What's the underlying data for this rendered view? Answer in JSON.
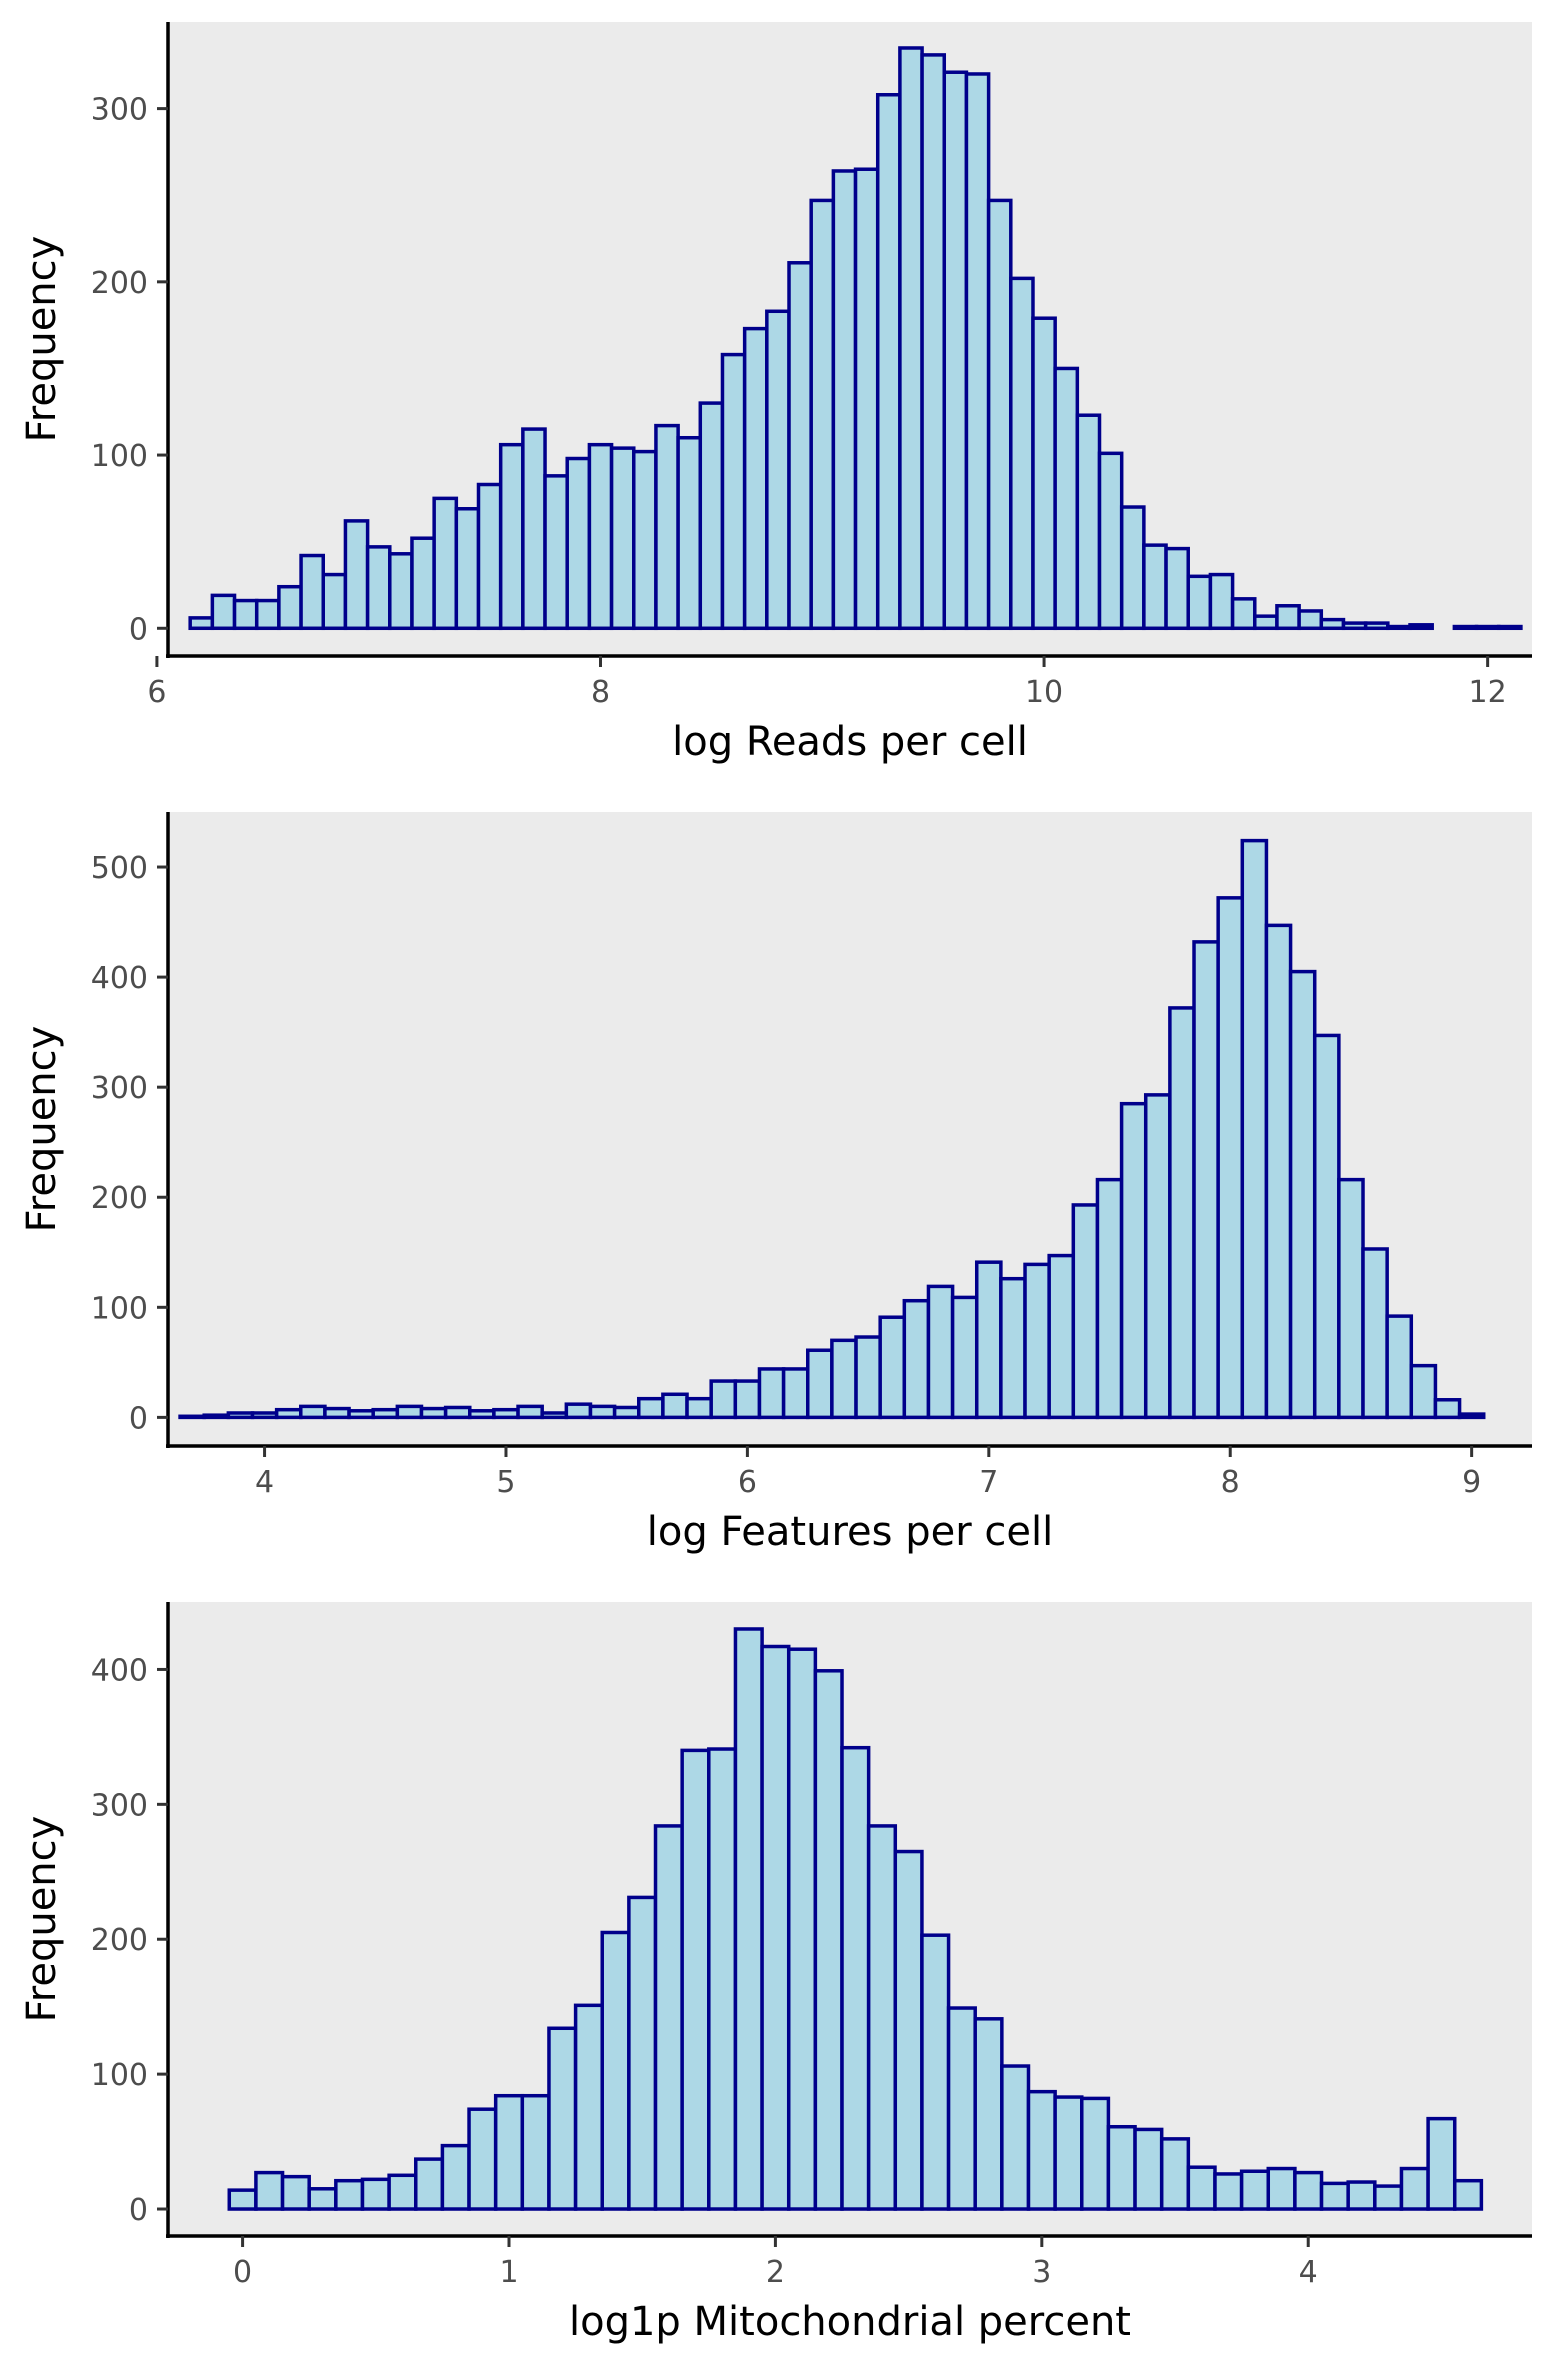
{
  "colors": {
    "bar_fill": "#add8e6",
    "bar_outline": "#00008b",
    "panel_background": "#ebebeb",
    "axis": "#000000",
    "tick_text": "#4d4d4d"
  },
  "chart_data": [
    {
      "type": "bar",
      "subtype": "histogram",
      "xlabel": "log Reads per cell",
      "ylabel": "Frequency",
      "xlim": [
        6.05,
        12.2
      ],
      "ylim": [
        -16,
        350
      ],
      "xticks": [
        6,
        8,
        10,
        12
      ],
      "xtick_labels": [
        "6",
        "8",
        "10",
        "12"
      ],
      "yticks": [
        0,
        100,
        200,
        300
      ],
      "ytick_labels": [
        "0",
        "100",
        "200",
        "300"
      ],
      "grid": false,
      "legend": "none",
      "bin_start": 6.15,
      "bin_width": 0.1,
      "values": [
        6,
        19,
        16,
        16,
        24,
        42,
        31,
        62,
        47,
        43,
        52,
        75,
        69,
        83,
        106,
        115,
        88,
        98,
        106,
        104,
        102,
        117,
        110,
        130,
        158,
        173,
        183,
        211,
        247,
        264,
        265,
        308,
        335,
        331,
        321,
        320,
        247,
        202,
        179,
        150,
        123,
        101,
        70,
        48,
        46,
        30,
        31,
        17,
        7,
        13,
        10,
        5,
        3,
        3,
        1,
        2,
        0,
        1,
        1,
        1
      ]
    },
    {
      "type": "bar",
      "subtype": "histogram",
      "xlabel": "log Features per cell",
      "ylabel": "Frequency",
      "xlim": [
        3.6,
        9.25
      ],
      "ylim": [
        -26,
        550
      ],
      "xticks": [
        4,
        5,
        6,
        7,
        8,
        9
      ],
      "xtick_labels": [
        "4",
        "5",
        "6",
        "7",
        "8",
        "9"
      ],
      "yticks": [
        0,
        100,
        200,
        300,
        400,
        500
      ],
      "ytick_labels": [
        "0",
        "100",
        "200",
        "300",
        "400",
        "500"
      ],
      "grid": false,
      "legend": "none",
      "bin_start": 3.65,
      "bin_width": 0.1,
      "values": [
        1,
        2,
        4,
        4,
        7,
        10,
        8,
        6,
        7,
        10,
        8,
        9,
        6,
        7,
        10,
        4,
        12,
        10,
        9,
        17,
        21,
        17,
        33,
        33,
        44,
        44,
        61,
        70,
        73,
        91,
        106,
        119,
        109,
        141,
        126,
        139,
        147,
        193,
        216,
        285,
        293,
        372,
        432,
        472,
        524,
        447,
        405,
        347,
        216,
        153,
        92,
        47,
        16,
        3
      ]
    },
    {
      "type": "bar",
      "subtype": "histogram",
      "xlabel": "log1p Mitochondrial percent",
      "ylabel": "Frequency",
      "xlim": [
        -0.28,
        4.84
      ],
      "ylim": [
        -20,
        450
      ],
      "xticks": [
        0,
        1,
        2,
        3,
        4
      ],
      "xtick_labels": [
        "0",
        "1",
        "2",
        "3",
        "4"
      ],
      "yticks": [
        0,
        100,
        200,
        300,
        400
      ],
      "ytick_labels": [
        "0",
        "100",
        "200",
        "300",
        "400"
      ],
      "grid": false,
      "legend": "none",
      "bin_start": -0.05,
      "bin_width": 0.1,
      "values": [
        14,
        27,
        24,
        15,
        21,
        22,
        25,
        37,
        47,
        74,
        84,
        84,
        134,
        151,
        205,
        231,
        284,
        340,
        341,
        430,
        417,
        415,
        399,
        342,
        284,
        265,
        203,
        149,
        141,
        106,
        87,
        83,
        82,
        61,
        59,
        52,
        31,
        26,
        28,
        30,
        27,
        19,
        20,
        17,
        30,
        67,
        21
      ]
    }
  ]
}
